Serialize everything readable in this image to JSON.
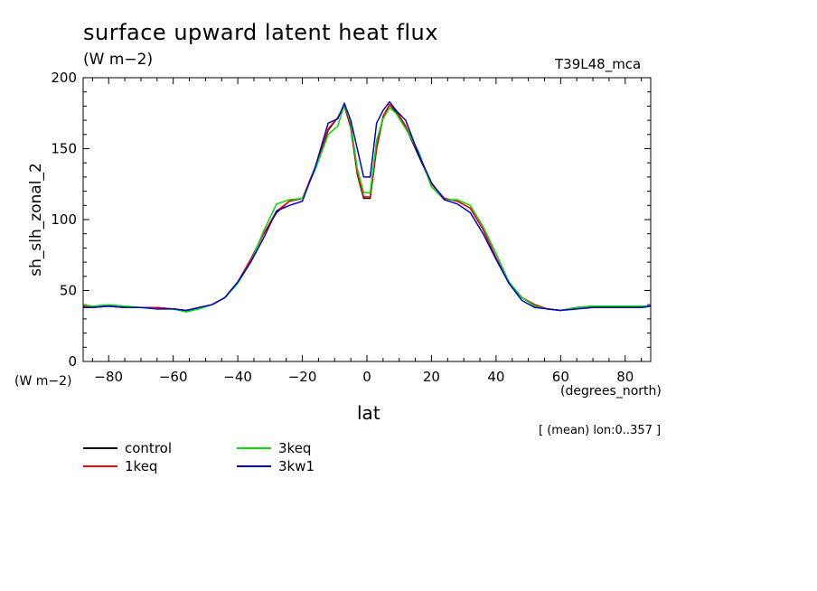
{
  "header": {
    "title": "surface upward latent heat flux",
    "units": "(W m−2)",
    "model": "T39L48_mca"
  },
  "axes": {
    "ylabel": "sh_slh_zonal_2",
    "yunits": "(W m−2)",
    "xlabel": "lat",
    "xunits": "(degrees_north)",
    "note": "[ (mean) lon:0..357 ]"
  },
  "chart_data": {
    "type": "line",
    "xlim": [
      -87.9,
      87.9
    ],
    "ylim": [
      0,
      200
    ],
    "xticks": [
      -80,
      -60,
      -40,
      -20,
      0,
      20,
      40,
      60,
      80
    ],
    "xtick_labels": [
      "−80",
      "−60",
      "−40",
      "−20",
      "0",
      "20",
      "40",
      "60",
      "80"
    ],
    "yticks": [
      0,
      50,
      100,
      150,
      200
    ],
    "ytick_labels": [
      "0",
      "50",
      "100",
      "150",
      "200"
    ],
    "grid": false,
    "legend_position": "bottom-left",
    "x": [
      -87.9,
      -85,
      -80,
      -75,
      -70,
      -65,
      -60,
      -56,
      -52,
      -48,
      -44,
      -40,
      -36,
      -32,
      -28,
      -24,
      -20,
      -16,
      -12,
      -9,
      -7,
      -5,
      -3,
      -1,
      1,
      3,
      5,
      7,
      9,
      12,
      16,
      20,
      24,
      28,
      32,
      36,
      40,
      44,
      48,
      52,
      56,
      60,
      65,
      70,
      75,
      80,
      85,
      87.9
    ],
    "series": [
      {
        "name": "control",
        "color": "#000000",
        "values": [
          39,
          38,
          39,
          38,
          38,
          38,
          37,
          36,
          38,
          40,
          45,
          56,
          72,
          90,
          105,
          113,
          115,
          136,
          163,
          172,
          180,
          165,
          132,
          115,
          115,
          150,
          172,
          181,
          176,
          165,
          145,
          125,
          115,
          113,
          108,
          93,
          73,
          55,
          45,
          40,
          37,
          36,
          38,
          39,
          39,
          38,
          38,
          39
        ]
      },
      {
        "name": "1keq",
        "color": "#ff0000",
        "values": [
          39,
          38,
          39,
          38,
          38,
          38,
          37,
          36,
          38,
          40,
          45,
          56,
          72,
          90,
          106,
          113,
          115,
          137,
          164,
          172,
          180,
          166,
          133,
          116,
          116,
          151,
          173,
          181,
          177,
          166,
          146,
          125,
          115,
          113,
          108,
          93,
          73,
          56,
          45,
          40,
          37,
          36,
          38,
          39,
          39,
          38,
          38,
          39
        ]
      },
      {
        "name": "3keq",
        "color": "#00e000",
        "values": [
          40,
          39,
          40,
          39,
          38,
          37,
          37,
          35,
          37,
          40,
          45,
          55,
          70,
          92,
          111,
          114,
          115,
          135,
          160,
          166,
          181,
          168,
          136,
          119,
          119,
          156,
          171,
          179,
          175,
          164,
          148,
          123,
          114,
          114,
          110,
          95,
          76,
          56,
          45,
          39,
          37,
          36,
          38,
          39,
          39,
          39,
          39,
          39
        ]
      },
      {
        "name": "3kw1",
        "color": "#0000d0",
        "values": [
          38,
          38,
          39,
          38,
          38,
          37,
          37,
          36,
          38,
          40,
          45,
          56,
          70,
          87,
          106,
          110,
          113,
          137,
          168,
          171,
          182,
          170,
          150,
          130,
          130,
          168,
          177,
          183,
          177,
          170,
          146,
          126,
          114,
          111,
          105,
          90,
          72,
          55,
          43,
          38,
          37,
          36,
          37,
          38,
          38,
          38,
          38,
          39
        ]
      }
    ]
  }
}
